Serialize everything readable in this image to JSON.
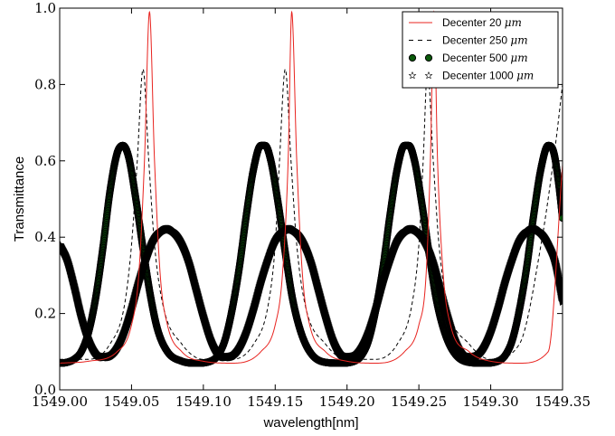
{
  "chart_data": {
    "type": "line",
    "title": "",
    "xlabel": "wavelength[nm]",
    "ylabel": "Transmittance",
    "xlim": [
      1549.0,
      1549.35
    ],
    "ylim": [
      0.0,
      1.0
    ],
    "x_ticks": [
      1549.0,
      1549.05,
      1549.1,
      1549.15,
      1549.2,
      1549.25,
      1549.3,
      1549.35
    ],
    "x_tick_labels": [
      "1549.00",
      "1549.05",
      "1549.10",
      "1549.15",
      "1549.20",
      "1549.25",
      "1549.30",
      "1549.35"
    ],
    "y_ticks": [
      0.0,
      0.2,
      0.4,
      0.6,
      0.8,
      1.0
    ],
    "y_tick_labels": [
      "0.0",
      "0.2",
      "0.4",
      "0.6",
      "0.8",
      "1.0"
    ],
    "grid": false,
    "legend_position": "top-right",
    "series": [
      {
        "name": "Decenter 20",
        "unit": "μm",
        "style": "solid-line",
        "color": "#e8231f",
        "x": [
          1549.0,
          1549.02,
          1549.04,
          1549.05,
          1549.055,
          1549.059,
          1549.0625,
          1549.066,
          1549.07,
          1549.075,
          1549.085,
          1549.1,
          1549.12,
          1549.14,
          1549.15,
          1549.155,
          1549.159,
          1549.1615,
          1549.165,
          1549.169,
          1549.174,
          1549.185,
          1549.2,
          1549.22,
          1549.24,
          1549.25,
          1549.255,
          1549.258,
          1549.2605,
          1549.263,
          1549.267,
          1549.272,
          1549.285,
          1549.3,
          1549.32,
          1549.34,
          1549.35
        ],
        "y": [
          0.07,
          0.075,
          0.1,
          0.17,
          0.3,
          0.6,
          0.99,
          0.6,
          0.3,
          0.17,
          0.1,
          0.075,
          0.07,
          0.1,
          0.17,
          0.3,
          0.6,
          0.99,
          0.6,
          0.3,
          0.17,
          0.1,
          0.075,
          0.07,
          0.1,
          0.17,
          0.3,
          0.6,
          0.99,
          0.6,
          0.3,
          0.17,
          0.1,
          0.075,
          0.07,
          0.1,
          0.59
        ]
      },
      {
        "name": "Decenter 250",
        "unit": "μm",
        "style": "dashed-line",
        "color": "#000000",
        "x": [
          1549.0,
          1549.02,
          1549.035,
          1549.045,
          1549.05,
          1549.054,
          1549.058,
          1549.062,
          1549.066,
          1549.072,
          1549.085,
          1549.1,
          1549.12,
          1549.135,
          1549.145,
          1549.15,
          1549.153,
          1549.157,
          1549.161,
          1549.165,
          1549.171,
          1549.185,
          1549.2,
          1549.22,
          1549.235,
          1549.245,
          1549.25,
          1549.253,
          1549.256,
          1549.26,
          1549.264,
          1549.27,
          1549.285,
          1549.3,
          1549.32,
          1549.335,
          1549.345,
          1549.35
        ],
        "y": [
          0.08,
          0.08,
          0.12,
          0.22,
          0.38,
          0.6,
          0.84,
          0.6,
          0.38,
          0.22,
          0.12,
          0.08,
          0.08,
          0.12,
          0.22,
          0.38,
          0.6,
          0.84,
          0.6,
          0.38,
          0.22,
          0.12,
          0.08,
          0.08,
          0.12,
          0.22,
          0.38,
          0.6,
          0.84,
          0.6,
          0.38,
          0.22,
          0.12,
          0.08,
          0.12,
          0.38,
          0.64,
          0.8
        ]
      },
      {
        "name": "Decenter 500",
        "unit": "μm",
        "style": "circle-markers",
        "color": "#0a5a0a",
        "x": [
          1549.0,
          1549.005,
          1549.01,
          1549.015,
          1549.02,
          1549.025,
          1549.03,
          1549.035,
          1549.04,
          1549.044,
          1549.048,
          1549.053,
          1549.058,
          1549.063,
          1549.068,
          1549.075,
          1549.085,
          1549.095,
          1549.105,
          1549.11,
          1549.115,
          1549.12,
          1549.125,
          1549.13,
          1549.135,
          1549.14,
          1549.143,
          1549.147,
          1549.152,
          1549.157,
          1549.162,
          1549.168,
          1549.175,
          1549.185,
          1549.195,
          1549.205,
          1549.21,
          1549.215,
          1549.22,
          1549.225,
          1549.23,
          1549.235,
          1549.24,
          1549.243,
          1549.247,
          1549.252,
          1549.257,
          1549.262,
          1549.268,
          1549.275,
          1549.285,
          1549.295,
          1549.305,
          1549.31,
          1549.315,
          1549.32,
          1549.325,
          1549.33,
          1549.335,
          1549.34,
          1549.344,
          1549.348,
          1549.35
        ],
        "y": [
          0.07,
          0.072,
          0.08,
          0.1,
          0.15,
          0.24,
          0.37,
          0.52,
          0.62,
          0.64,
          0.61,
          0.5,
          0.37,
          0.25,
          0.16,
          0.1,
          0.075,
          0.07,
          0.075,
          0.09,
          0.13,
          0.21,
          0.32,
          0.46,
          0.58,
          0.64,
          0.64,
          0.6,
          0.49,
          0.36,
          0.24,
          0.15,
          0.095,
          0.072,
          0.07,
          0.075,
          0.09,
          0.13,
          0.21,
          0.32,
          0.46,
          0.58,
          0.64,
          0.64,
          0.6,
          0.49,
          0.36,
          0.24,
          0.15,
          0.095,
          0.072,
          0.07,
          0.075,
          0.09,
          0.13,
          0.21,
          0.32,
          0.46,
          0.58,
          0.64,
          0.62,
          0.52,
          0.45
        ]
      },
      {
        "name": "Decenter 1000",
        "unit": "μm",
        "style": "star-markers",
        "color": "#000000",
        "x": [
          1549.0,
          1549.005,
          1549.01,
          1549.015,
          1549.02,
          1549.025,
          1549.03,
          1549.035,
          1549.04,
          1549.045,
          1549.05,
          1549.055,
          1549.06,
          1549.065,
          1549.07,
          1549.075,
          1549.08,
          1549.085,
          1549.09,
          1549.095,
          1549.1,
          1549.105,
          1549.11,
          1549.115,
          1549.12,
          1549.125,
          1549.13,
          1549.135,
          1549.14,
          1549.145,
          1549.15,
          1549.155,
          1549.16,
          1549.165,
          1549.17,
          1549.175,
          1549.18,
          1549.185,
          1549.19,
          1549.195,
          1549.2,
          1549.205,
          1549.21,
          1549.215,
          1549.22,
          1549.225,
          1549.23,
          1549.235,
          1549.24,
          1549.245,
          1549.25,
          1549.255,
          1549.26,
          1549.265,
          1549.27,
          1549.275,
          1549.28,
          1549.285,
          1549.29,
          1549.295,
          1549.3,
          1549.305,
          1549.31,
          1549.315,
          1549.32,
          1549.325,
          1549.33,
          1549.335,
          1549.34,
          1549.345,
          1549.35
        ],
        "y": [
          0.38,
          0.34,
          0.27,
          0.19,
          0.13,
          0.095,
          0.085,
          0.09,
          0.11,
          0.15,
          0.21,
          0.28,
          0.34,
          0.39,
          0.415,
          0.42,
          0.41,
          0.38,
          0.33,
          0.26,
          0.19,
          0.13,
          0.095,
          0.085,
          0.09,
          0.11,
          0.15,
          0.21,
          0.28,
          0.34,
          0.39,
          0.415,
          0.42,
          0.41,
          0.38,
          0.33,
          0.26,
          0.19,
          0.13,
          0.095,
          0.085,
          0.09,
          0.11,
          0.15,
          0.21,
          0.28,
          0.34,
          0.39,
          0.415,
          0.42,
          0.41,
          0.38,
          0.33,
          0.26,
          0.19,
          0.13,
          0.095,
          0.085,
          0.09,
          0.11,
          0.15,
          0.21,
          0.28,
          0.34,
          0.39,
          0.415,
          0.42,
          0.41,
          0.38,
          0.33,
          0.23
        ]
      }
    ]
  }
}
